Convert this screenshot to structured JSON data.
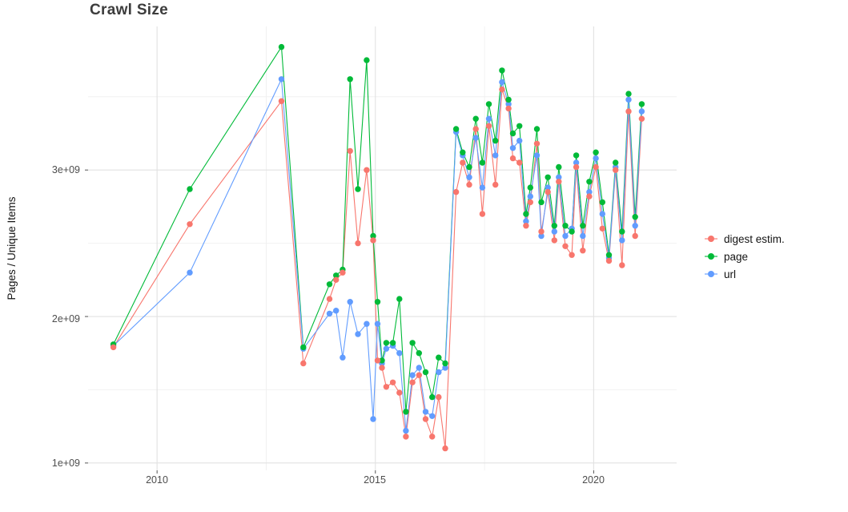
{
  "figure": {
    "background_color": "#ffffff"
  },
  "chart_data": {
    "type": "line",
    "title": "Crawl Size",
    "xlabel": "",
    "ylabel": "Pages / Unique Items",
    "legend_position": "right",
    "grid": true,
    "grid_major_color": "#e2e2e2",
    "grid_minor_color": "#f0f0f0",
    "axis_text_color": "#4d4d4d",
    "title_color": "#3c3c3c",
    "x_tick_labels": [
      "2010",
      "2015",
      "2020"
    ],
    "x_tick_values": [
      2010,
      2015,
      2020
    ],
    "x_minor_gridlines": [
      2012.5,
      2017.5
    ],
    "y_tick_labels": [
      "1e+09",
      "2e+09",
      "3e+09"
    ],
    "y_tick_values_billions": [
      1,
      2,
      3
    ],
    "y_minor_gridlines_billions": [
      1.5,
      2.5,
      3.5
    ],
    "xlim": [
      2008.42,
      2021.9
    ],
    "ylim_billions": [
      0.95,
      3.98
    ],
    "value_unit": "pages (billions, 1e+09)",
    "x": [
      2009.0,
      2010.75,
      2012.85,
      2013.35,
      2013.95,
      2014.1,
      2014.25,
      2014.42,
      2014.6,
      2014.8,
      2014.95,
      2015.05,
      2015.15,
      2015.25,
      2015.4,
      2015.55,
      2015.7,
      2015.85,
      2016.0,
      2016.15,
      2016.3,
      2016.45,
      2016.6,
      2016.85,
      2017.0,
      2017.15,
      2017.3,
      2017.45,
      2017.6,
      2017.75,
      2017.9,
      2018.05,
      2018.15,
      2018.3,
      2018.45,
      2018.55,
      2018.7,
      2018.8,
      2018.95,
      2019.1,
      2019.2,
      2019.35,
      2019.5,
      2019.6,
      2019.75,
      2019.9,
      2020.05,
      2020.2,
      2020.35,
      2020.5,
      2020.65,
      2020.8,
      2020.95,
      2021.1
    ],
    "series": [
      {
        "id": "digest-estim",
        "name": "digest estim.",
        "color": "#F8766D",
        "values_billions": [
          1.79,
          2.63,
          3.47,
          1.68,
          2.12,
          2.25,
          2.3,
          3.13,
          2.5,
          3.0,
          2.52,
          1.7,
          1.65,
          1.52,
          1.55,
          1.48,
          1.18,
          1.55,
          1.6,
          1.3,
          1.18,
          1.45,
          1.1,
          2.85,
          3.05,
          2.9,
          3.28,
          2.7,
          3.3,
          2.9,
          3.55,
          3.42,
          3.08,
          3.05,
          2.62,
          2.78,
          3.18,
          2.58,
          2.85,
          2.52,
          2.92,
          2.48,
          2.42,
          3.02,
          2.45,
          2.82,
          3.02,
          2.6,
          2.38,
          3.0,
          2.35,
          3.4,
          2.55,
          3.35
        ]
      },
      {
        "id": "page",
        "name": "page",
        "color": "#00BA38",
        "values_billions": [
          1.81,
          2.87,
          3.84,
          1.79,
          2.22,
          2.28,
          2.32,
          3.62,
          2.87,
          3.75,
          2.55,
          2.1,
          1.7,
          1.82,
          1.82,
          2.12,
          1.35,
          1.82,
          1.75,
          1.62,
          1.45,
          1.72,
          1.68,
          3.28,
          3.12,
          3.02,
          3.35,
          3.05,
          3.45,
          3.2,
          3.68,
          3.48,
          3.25,
          3.3,
          2.7,
          2.88,
          3.28,
          2.78,
          2.95,
          2.62,
          3.02,
          2.62,
          2.58,
          3.1,
          2.62,
          2.92,
          3.12,
          2.78,
          2.42,
          3.05,
          2.58,
          3.52,
          2.68,
          3.45
        ]
      },
      {
        "id": "url",
        "name": "url",
        "color": "#619CFF",
        "values_billions": [
          1.8,
          2.3,
          3.62,
          1.78,
          2.02,
          2.04,
          1.72,
          2.1,
          1.88,
          1.95,
          1.3,
          1.95,
          1.68,
          1.78,
          1.8,
          1.75,
          1.22,
          1.6,
          1.65,
          1.35,
          1.32,
          1.62,
          1.65,
          3.26,
          3.1,
          2.95,
          3.22,
          2.88,
          3.35,
          3.1,
          3.6,
          3.45,
          3.15,
          3.2,
          2.65,
          2.82,
          3.1,
          2.55,
          2.88,
          2.58,
          2.95,
          2.55,
          2.6,
          3.05,
          2.55,
          2.85,
          3.08,
          2.7,
          2.4,
          3.02,
          2.52,
          3.48,
          2.62,
          3.4
        ]
      }
    ]
  }
}
